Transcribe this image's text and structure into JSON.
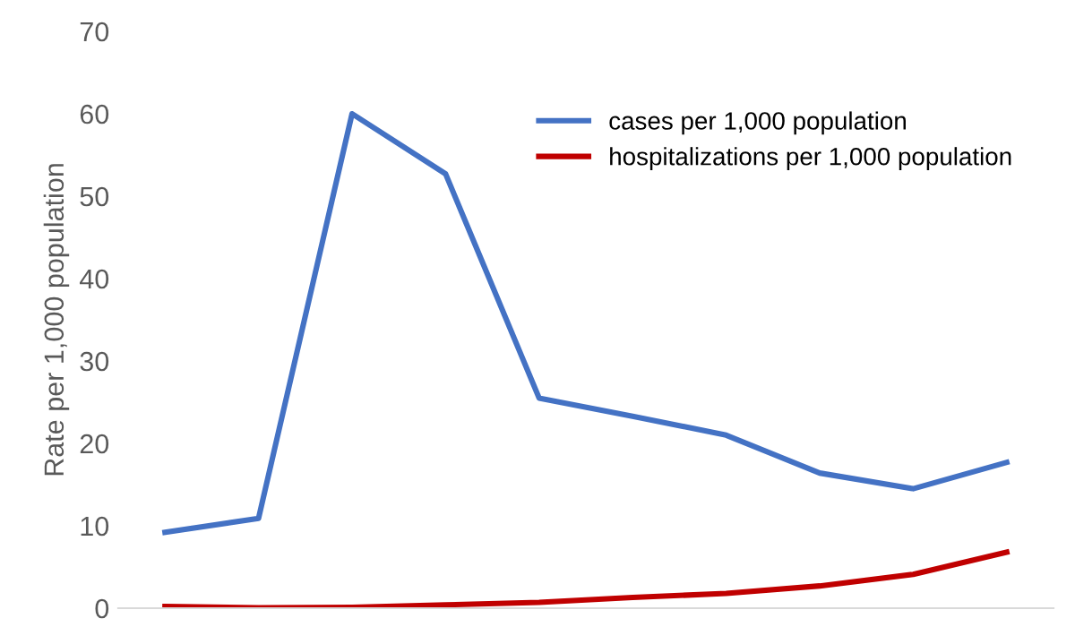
{
  "chart_data": {
    "type": "line",
    "ylabel": "Rate per 1,000 population",
    "categories": [
      null,
      null,
      null,
      null,
      null,
      null,
      null,
      null,
      null,
      null
    ],
    "series": [
      {
        "name": "cases per 1,000 population",
        "color": "#4472c4",
        "values": [
          9.2,
          10.9,
          60,
          52.7,
          25.5,
          23.3,
          21,
          16.4,
          14.5,
          17.7
        ]
      },
      {
        "name": "hospitalizations per 1,000 population",
        "color": "#c00000",
        "values": [
          0.2,
          0.05,
          0.1,
          0.4,
          0.7,
          1.3,
          1.8,
          2.7,
          4.1,
          6.8
        ]
      }
    ],
    "ylim": [
      0,
      70
    ],
    "yticks": [
      0,
      10,
      20,
      30,
      40,
      50,
      60,
      70
    ],
    "grid": false,
    "legend": "top right",
    "marker": "none",
    "line_style": "solid"
  }
}
